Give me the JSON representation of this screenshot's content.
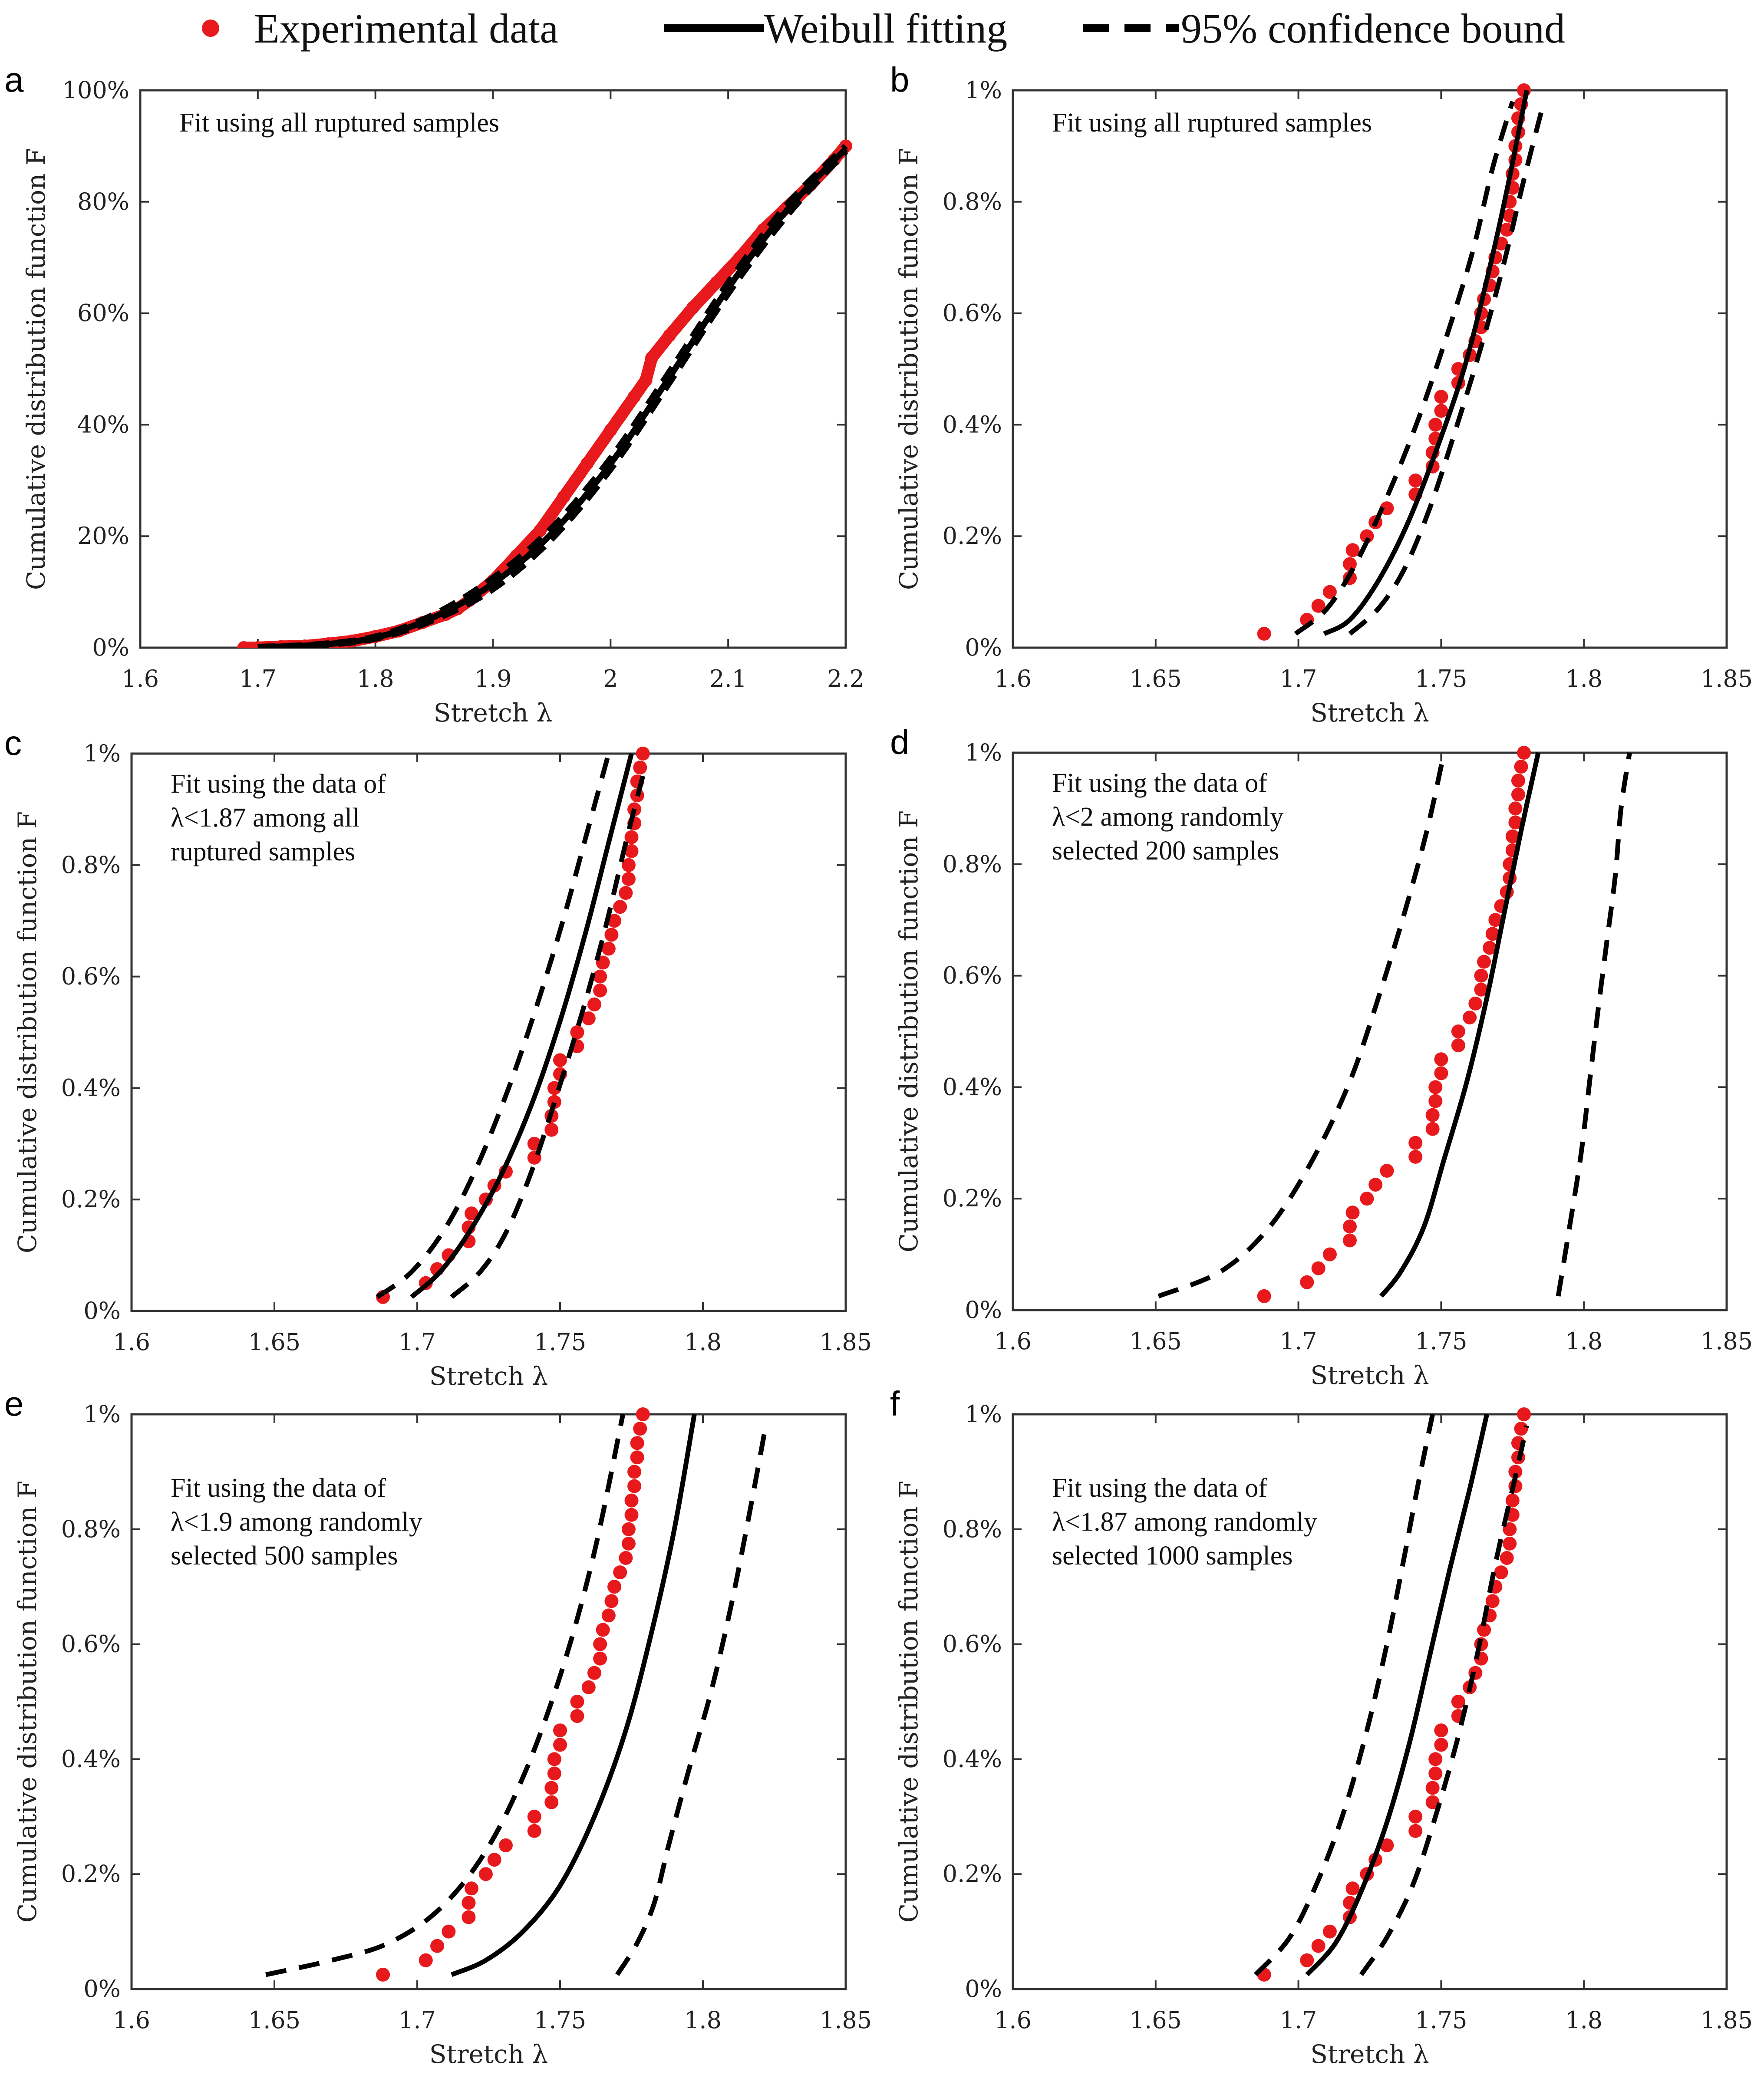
{
  "legend": {
    "items": [
      {
        "label": "Experimental data",
        "marker": "red-dot",
        "color": "#e8191c"
      },
      {
        "label": "Weibull fitting",
        "marker": "solid-line",
        "color": "#000000"
      },
      {
        "label": "95% confidence bound",
        "marker": "dashed-line",
        "color": "#000000"
      }
    ]
  },
  "chart_data": [
    {
      "panel": "a",
      "type": "scatter+line",
      "annotation": [
        "Fit using all ruptured samples"
      ],
      "xlabel": "Stretch λ",
      "ylabel": "Cumulative distribution function F",
      "xlim": [
        1.6,
        2.2
      ],
      "ylim": [
        0,
        100
      ],
      "y_unit": "%",
      "xticks": [
        "1.6",
        "1.7",
        "1.8",
        "1.9",
        "2",
        "2.1",
        "2.2"
      ],
      "yticks": [
        "0%",
        "20%",
        "40%",
        "60%",
        "80%",
        "100%"
      ],
      "grid": false,
      "series": [
        {
          "name": "Experimental data",
          "style": "scatter",
          "x": [
            1.688,
            1.7,
            1.72,
            1.74,
            1.76,
            1.78,
            1.8,
            1.82,
            1.84,
            1.86,
            1.87,
            1.88,
            1.9,
            1.92,
            1.94,
            1.96,
            1.98,
            2.0,
            2.02,
            2.03,
            2.035,
            2.05,
            2.07,
            2.09,
            2.11,
            2.13,
            2.15,
            2.17,
            2.19,
            2.2
          ],
          "y": [
            0,
            0,
            0.2,
            0.3,
            0.7,
            1.2,
            2.0,
            3.0,
            4.5,
            6.0,
            7.0,
            8.5,
            12.0,
            16.5,
            21.0,
            27.0,
            33.0,
            39.0,
            45.0,
            48.0,
            52.0,
            56.0,
            61.0,
            65.5,
            70.0,
            75.0,
            79.0,
            83.0,
            87.5,
            90.0
          ]
        },
        {
          "name": "Weibull fitting",
          "style": "solid",
          "x": [
            1.7,
            1.75,
            1.8,
            1.85,
            1.9,
            1.95,
            2.0,
            2.05,
            2.1,
            2.15,
            2.2
          ],
          "y": [
            0.1,
            0.5,
            1.8,
            5.5,
            11.5,
            20.5,
            33.0,
            48.5,
            64.5,
            78.5,
            89.5
          ]
        },
        {
          "name": "95% confidence bound (lower)",
          "style": "dashed",
          "x": [
            1.7,
            1.75,
            1.8,
            1.85,
            1.9,
            1.95,
            2.0,
            2.05,
            2.1,
            2.15,
            2.2
          ],
          "y": [
            0.15,
            0.6,
            2.0,
            6.0,
            12.5,
            21.5,
            34.0,
            49.5,
            65.5,
            79.5,
            90.0
          ]
        },
        {
          "name": "95% confidence bound (upper)",
          "style": "dashed",
          "x": [
            1.7,
            1.75,
            1.8,
            1.85,
            1.9,
            1.95,
            2.0,
            2.05,
            2.1,
            2.15,
            2.2
          ],
          "y": [
            0.05,
            0.4,
            1.6,
            5.0,
            10.5,
            19.5,
            32.0,
            47.5,
            63.5,
            77.5,
            89.0
          ]
        }
      ]
    },
    {
      "panel": "b",
      "type": "scatter+line",
      "annotation": [
        "Fit using all ruptured samples"
      ],
      "xlabel": "Stretch λ",
      "ylabel": "Cumulative distribution function F",
      "xlim": [
        1.6,
        1.85
      ],
      "ylim": [
        0,
        1
      ],
      "y_unit": "%",
      "xticks": [
        "1.6",
        "1.65",
        "1.7",
        "1.75",
        "1.8",
        "1.85"
      ],
      "yticks": [
        "0%",
        "0.2%",
        "0.4%",
        "0.6%",
        "0.8%",
        "1%"
      ],
      "grid": false,
      "series": [
        {
          "name": "Experimental data",
          "style": "scatter",
          "ref": "experimental"
        },
        {
          "name": "Weibull fitting",
          "style": "solid",
          "x": [
            1.709,
            1.718,
            1.728,
            1.738,
            1.748,
            1.758,
            1.766,
            1.773,
            1.78
          ],
          "y": [
            0.025,
            0.05,
            0.12,
            0.22,
            0.35,
            0.5,
            0.66,
            0.82,
            1.0
          ]
        },
        {
          "name": "95% confidence bound (lower)",
          "style": "dashed",
          "x": [
            1.699,
            1.71,
            1.72,
            1.731,
            1.742,
            1.752,
            1.761,
            1.768,
            1.775
          ],
          "y": [
            0.025,
            0.07,
            0.15,
            0.27,
            0.41,
            0.56,
            0.71,
            0.86,
            0.98
          ]
        },
        {
          "name": "95% confidence bound (upper)",
          "style": "dashed",
          "x": [
            1.718,
            1.728,
            1.737,
            1.746,
            1.755,
            1.764,
            1.772,
            1.779,
            1.786
          ],
          "y": [
            0.025,
            0.07,
            0.14,
            0.25,
            0.39,
            0.54,
            0.69,
            0.84,
            0.98
          ]
        }
      ]
    },
    {
      "panel": "c",
      "type": "scatter+line",
      "annotation": [
        "Fit using the data of",
        "λ<1.87 among all",
        "ruptured samples"
      ],
      "xlabel": "Stretch λ",
      "ylabel": "Cumulative distribution function F",
      "xlim": [
        1.6,
        1.85
      ],
      "ylim": [
        0,
        1
      ],
      "y_unit": "%",
      "xticks": [
        "1.6",
        "1.65",
        "1.7",
        "1.75",
        "1.8",
        "1.85"
      ],
      "yticks": [
        "0%",
        "0.2%",
        "0.4%",
        "0.6%",
        "0.8%",
        "1%"
      ],
      "grid": false,
      "series": [
        {
          "name": "Experimental data",
          "style": "scatter",
          "ref": "experimental"
        },
        {
          "name": "Weibull fitting",
          "style": "solid",
          "x": [
            1.698,
            1.708,
            1.718,
            1.729,
            1.74,
            1.75,
            1.759,
            1.767,
            1.775
          ],
          "y": [
            0.025,
            0.07,
            0.14,
            0.24,
            0.37,
            0.52,
            0.68,
            0.84,
            1.0
          ]
        },
        {
          "name": "95% confidence bound (lower)",
          "style": "dashed",
          "x": [
            1.686,
            1.698,
            1.71,
            1.721,
            1.732,
            1.742,
            1.751,
            1.759,
            1.767
          ],
          "y": [
            0.025,
            0.07,
            0.15,
            0.26,
            0.4,
            0.55,
            0.7,
            0.85,
            1.0
          ]
        },
        {
          "name": "95% confidence bound (upper)",
          "style": "dashed",
          "x": [
            1.712,
            1.722,
            1.731,
            1.74,
            1.749,
            1.758,
            1.766,
            1.773,
            1.78
          ],
          "y": [
            0.025,
            0.07,
            0.14,
            0.25,
            0.39,
            0.54,
            0.69,
            0.84,
            0.98
          ]
        }
      ]
    },
    {
      "panel": "d",
      "type": "scatter+line",
      "annotation": [
        "Fit using the data of",
        "λ<2 among randomly",
        "selected 200 samples"
      ],
      "xlabel": "Stretch λ",
      "ylabel": "Cumulative distribution function F",
      "xlim": [
        1.6,
        1.85
      ],
      "ylim": [
        0,
        1
      ],
      "y_unit": "%",
      "xticks": [
        "1.6",
        "1.65",
        "1.7",
        "1.75",
        "1.8",
        "1.85"
      ],
      "yticks": [
        "0%",
        "0.2%",
        "0.4%",
        "0.6%",
        "0.8%",
        "1%"
      ],
      "grid": false,
      "series": [
        {
          "name": "Experimental data",
          "style": "scatter",
          "ref": "experimental"
        },
        {
          "name": "Weibull fitting",
          "style": "solid",
          "x": [
            1.729,
            1.736,
            1.744,
            1.751,
            1.759,
            1.766,
            1.772,
            1.778,
            1.784
          ],
          "y": [
            0.025,
            0.07,
            0.15,
            0.27,
            0.41,
            0.56,
            0.71,
            0.86,
            1.0
          ]
        },
        {
          "name": "95% confidence bound (lower)",
          "style": "dashed",
          "x": [
            1.651,
            1.673,
            1.69,
            1.705,
            1.718,
            1.728,
            1.737,
            1.745,
            1.751
          ],
          "y": [
            0.025,
            0.07,
            0.15,
            0.27,
            0.41,
            0.56,
            0.71,
            0.86,
            1.0
          ]
        },
        {
          "name": "95% confidence bound (upper)",
          "style": "dashed",
          "x": [
            1.791,
            1.795,
            1.799,
            1.802,
            1.805,
            1.808,
            1.811,
            1.813,
            1.816
          ],
          "y": [
            0.025,
            0.15,
            0.28,
            0.41,
            0.54,
            0.66,
            0.78,
            0.9,
            1.0
          ]
        }
      ]
    },
    {
      "panel": "e",
      "type": "scatter+line",
      "annotation": [
        "Fit using the data of",
        "λ<1.9 among randomly",
        "selected 500 samples"
      ],
      "xlabel": "Stretch λ",
      "ylabel": "Cumulative distribution function F",
      "xlim": [
        1.6,
        1.85
      ],
      "ylim": [
        0,
        1
      ],
      "y_unit": "%",
      "xticks": [
        "1.6",
        "1.65",
        "1.7",
        "1.75",
        "1.8",
        "1.85"
      ],
      "yticks": [
        "0%",
        "0.2%",
        "0.4%",
        "0.6%",
        "0.8%",
        "1%"
      ],
      "grid": false,
      "series": [
        {
          "name": "Experimental data",
          "style": "scatter",
          "ref": "experimental"
        },
        {
          "name": "Weibull fitting",
          "style": "solid",
          "x": [
            1.712,
            1.724,
            1.737,
            1.75,
            1.762,
            1.773,
            1.782,
            1.79,
            1.797
          ],
          "y": [
            0.025,
            0.05,
            0.1,
            0.18,
            0.3,
            0.45,
            0.62,
            0.8,
            1.0
          ]
        },
        {
          "name": "95% confidence bound (lower)",
          "style": "dashed",
          "x": [
            1.647,
            1.67,
            1.69,
            1.708,
            1.724,
            1.738,
            1.751,
            1.762,
            1.772
          ],
          "y": [
            0.025,
            0.05,
            0.08,
            0.14,
            0.24,
            0.38,
            0.56,
            0.76,
            1.0
          ]
        },
        {
          "name": "95% confidence bound (upper)",
          "style": "dashed",
          "x": [
            1.77,
            1.777,
            1.783,
            1.788,
            1.795,
            1.803,
            1.81,
            1.816,
            1.822
          ],
          "y": [
            0.025,
            0.08,
            0.15,
            0.25,
            0.38,
            0.52,
            0.67,
            0.82,
            0.98
          ]
        }
      ]
    },
    {
      "panel": "f",
      "type": "scatter+line",
      "annotation": [
        "Fit using the data of",
        "λ<1.87 among randomly",
        " selected 1000 samples"
      ],
      "xlabel": "Stretch λ",
      "ylabel": "Cumulative distribution function F",
      "xlim": [
        1.6,
        1.85
      ],
      "ylim": [
        0,
        1
      ],
      "y_unit": "%",
      "xticks": [
        "1.6",
        "1.65",
        "1.7",
        "1.75",
        "1.8",
        "1.85"
      ],
      "yticks": [
        "0%",
        "0.2%",
        "0.4%",
        "0.6%",
        "0.8%",
        "1%"
      ],
      "grid": false,
      "series": [
        {
          "name": "Experimental data",
          "style": "scatter",
          "ref": "experimental"
        },
        {
          "name": "Weibull fitting",
          "style": "solid",
          "x": [
            1.703,
            1.713,
            1.722,
            1.731,
            1.739,
            1.746,
            1.753,
            1.76,
            1.766
          ],
          "y": [
            0.025,
            0.08,
            0.17,
            0.29,
            0.43,
            0.58,
            0.73,
            0.87,
            1.0
          ]
        },
        {
          "name": "95% confidence bound (lower)",
          "style": "dashed",
          "x": [
            1.685,
            1.697,
            1.707,
            1.716,
            1.724,
            1.731,
            1.737,
            1.742,
            1.747
          ],
          "y": [
            0.025,
            0.09,
            0.19,
            0.31,
            0.45,
            0.6,
            0.75,
            0.88,
            1.0
          ]
        },
        {
          "name": "95% confidence bound (upper)",
          "style": "dashed",
          "x": [
            1.722,
            1.731,
            1.74,
            1.748,
            1.756,
            1.763,
            1.769,
            1.775,
            1.78
          ],
          "y": [
            0.025,
            0.09,
            0.18,
            0.3,
            0.44,
            0.59,
            0.74,
            0.87,
            0.98
          ]
        }
      ]
    }
  ],
  "experimental": {
    "x": [
      1.688,
      1.703,
      1.707,
      1.711,
      1.718,
      1.718,
      1.719,
      1.724,
      1.727,
      1.731,
      1.741,
      1.741,
      1.747,
      1.747,
      1.748,
      1.748,
      1.75,
      1.75,
      1.756,
      1.756,
      1.76,
      1.762,
      1.764,
      1.764,
      1.765,
      1.767,
      1.768,
      1.769,
      1.771,
      1.773,
      1.774,
      1.774,
      1.775,
      1.775,
      1.776,
      1.776,
      1.777,
      1.777,
      1.778,
      1.779
    ],
    "y": [
      0.025,
      0.05,
      0.075,
      0.1,
      0.125,
      0.15,
      0.175,
      0.2,
      0.225,
      0.25,
      0.275,
      0.3,
      0.325,
      0.35,
      0.375,
      0.4,
      0.425,
      0.45,
      0.475,
      0.5,
      0.525,
      0.55,
      0.575,
      0.6,
      0.625,
      0.65,
      0.675,
      0.7,
      0.725,
      0.75,
      0.775,
      0.8,
      0.825,
      0.85,
      0.875,
      0.9,
      0.925,
      0.95,
      0.975,
      1.0
    ]
  },
  "colors": {
    "experimental": "#e8191c",
    "fit": "#000000",
    "axis": "#333333"
  }
}
